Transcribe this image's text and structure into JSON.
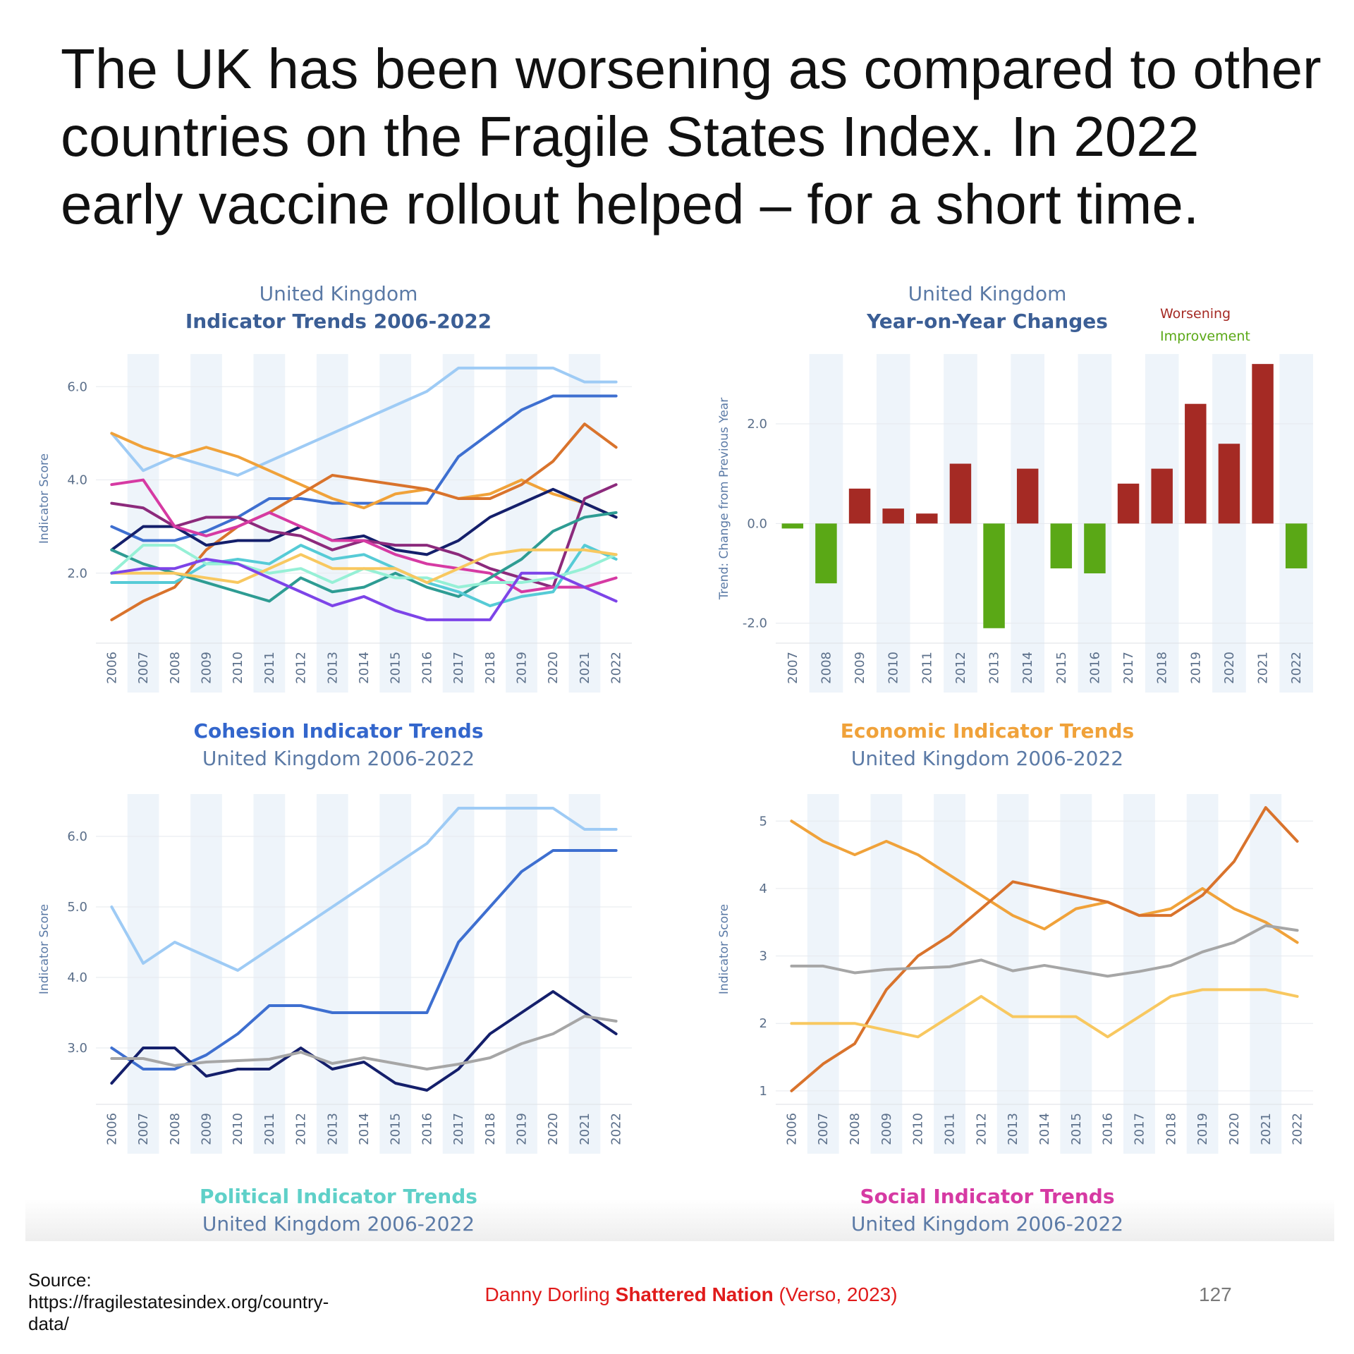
{
  "headline": "The UK has been worsening as compared to other countries on the Fragile States Index. In 2022 early vaccine rollout helped – for a short time.",
  "footer": {
    "source": "Source: https://fragilestatesindex.org/country-data/",
    "credit_author": "Danny Dorling ",
    "credit_book": "Shattered Nation",
    "credit_pub": " (Verso, 2023)",
    "page_number": "127"
  },
  "colors": {
    "worsening": "#a52a24",
    "improvement": "#5aa816",
    "band": "#eef4fa",
    "cohesion_title": "#3366cc",
    "economic_title": "#f0a23a",
    "political_title": "#5fd0c8",
    "social_title": "#d63aa3"
  },
  "chart_data": [
    {
      "id": "indicator-trends",
      "type": "line",
      "subtitle": "United Kingdom",
      "title": "Indicator Trends 2006-2022",
      "ylabel": "Indicator Score",
      "ylim": [
        0.5,
        6.7
      ],
      "yticks": [
        2.0,
        4.0,
        6.0
      ],
      "ytick_labels": [
        "2.0",
        "4.0",
        "6.0"
      ],
      "x": [
        "2006",
        "2007",
        "2008",
        "2009",
        "2010",
        "2011",
        "2012",
        "2013",
        "2014",
        "2015",
        "2016",
        "2017",
        "2018",
        "2019",
        "2020",
        "2021",
        "2022"
      ],
      "series": [
        {
          "color": "#9ecbf5",
          "values": [
            5.0,
            4.2,
            4.5,
            4.3,
            4.1,
            4.4,
            4.7,
            5.0,
            5.3,
            5.6,
            5.9,
            6.4,
            6.4,
            6.4,
            6.4,
            6.1,
            6.1
          ]
        },
        {
          "color": "#3e6fd0",
          "values": [
            3.0,
            2.7,
            2.7,
            2.9,
            3.2,
            3.6,
            3.6,
            3.5,
            3.5,
            3.5,
            3.5,
            4.5,
            5.0,
            5.5,
            5.8,
            5.8,
            5.8
          ]
        },
        {
          "color": "#f0a23a",
          "values": [
            5.0,
            4.7,
            4.5,
            4.7,
            4.5,
            4.2,
            3.9,
            3.6,
            3.4,
            3.7,
            3.8,
            3.6,
            3.7,
            4.0,
            3.7,
            3.5,
            3.2
          ]
        },
        {
          "color": "#d9732c",
          "values": [
            1.0,
            1.4,
            1.7,
            2.5,
            3.0,
            3.3,
            3.7,
            4.1,
            4.0,
            3.9,
            3.8,
            3.6,
            3.6,
            3.9,
            4.4,
            5.2,
            4.7
          ]
        },
        {
          "color": "#141f6b",
          "values": [
            2.5,
            3.0,
            3.0,
            2.6,
            2.7,
            2.7,
            3.0,
            2.7,
            2.8,
            2.5,
            2.4,
            2.7,
            3.2,
            3.5,
            3.8,
            3.5,
            3.2
          ]
        },
        {
          "color": "#8c2a7c",
          "values": [
            3.5,
            3.4,
            3.0,
            3.2,
            3.2,
            2.9,
            2.8,
            2.5,
            2.7,
            2.6,
            2.6,
            2.4,
            2.1,
            1.9,
            1.7,
            3.6,
            3.9
          ]
        },
        {
          "color": "#d63aa3",
          "values": [
            3.9,
            4.0,
            3.0,
            2.8,
            3.0,
            3.3,
            3.0,
            2.7,
            2.7,
            2.4,
            2.2,
            2.1,
            2.0,
            1.6,
            1.7,
            1.7,
            1.9
          ]
        },
        {
          "color": "#2e9c93",
          "values": [
            2.5,
            2.2,
            2.0,
            1.8,
            1.6,
            1.4,
            1.9,
            1.6,
            1.7,
            2.0,
            1.7,
            1.5,
            1.9,
            2.3,
            2.9,
            3.2,
            3.3
          ]
        },
        {
          "color": "#56cbd6",
          "values": [
            1.8,
            1.8,
            1.8,
            2.2,
            2.3,
            2.2,
            2.6,
            2.3,
            2.4,
            2.1,
            1.8,
            1.6,
            1.3,
            1.5,
            1.6,
            2.6,
            2.3
          ]
        },
        {
          "color": "#96f0d6",
          "values": [
            2.0,
            2.6,
            2.6,
            2.2,
            2.2,
            2.0,
            2.1,
            1.8,
            2.1,
            1.9,
            1.9,
            1.7,
            1.8,
            1.8,
            1.9,
            2.1,
            2.4
          ]
        },
        {
          "color": "#f8c860",
          "values": [
            2.0,
            2.0,
            2.0,
            1.9,
            1.8,
            2.1,
            2.4,
            2.1,
            2.1,
            2.1,
            1.8,
            2.1,
            2.4,
            2.5,
            2.5,
            2.5,
            2.4
          ]
        },
        {
          "color": "#7d44e8",
          "values": [
            2.0,
            2.1,
            2.1,
            2.3,
            2.2,
            1.9,
            1.6,
            1.3,
            1.5,
            1.2,
            1.0,
            1.0,
            1.0,
            2.0,
            2.0,
            1.7,
            1.4
          ]
        }
      ]
    },
    {
      "id": "year-on-year",
      "type": "bar",
      "subtitle": "United Kingdom",
      "title": "Year-on-Year Changes",
      "ylabel": "Trend: Change from Previous Year",
      "legend": [
        "Worsening",
        "Improvement"
      ],
      "ylim": [
        -2.4,
        3.4
      ],
      "yticks": [
        -2.0,
        0.0,
        2.0
      ],
      "ytick_labels": [
        "-2.0",
        "0.0",
        "2.0"
      ],
      "categories": [
        "2007",
        "2008",
        "2009",
        "2010",
        "2011",
        "2012",
        "2013",
        "2014",
        "2015",
        "2016",
        "2017",
        "2018",
        "2019",
        "2020",
        "2021",
        "2022"
      ],
      "values": [
        -0.1,
        -1.2,
        0.7,
        0.3,
        0.2,
        1.2,
        -2.1,
        1.1,
        -0.9,
        -1.0,
        0.8,
        1.1,
        2.4,
        1.6,
        3.2,
        -0.9
      ]
    },
    {
      "id": "cohesion",
      "type": "line",
      "title": "Cohesion Indicator Trends",
      "subtitle": "United Kingdom 2006-2022",
      "ylabel": "Indicator Score",
      "ylim": [
        2.2,
        6.6
      ],
      "yticks": [
        3.0,
        4.0,
        5.0,
        6.0
      ],
      "ytick_labels": [
        "3.0",
        "4.0",
        "5.0",
        "6.0"
      ],
      "x": [
        "2006",
        "2007",
        "2008",
        "2009",
        "2010",
        "2011",
        "2012",
        "2013",
        "2014",
        "2015",
        "2016",
        "2017",
        "2018",
        "2019",
        "2020",
        "2021",
        "2022"
      ],
      "series": [
        {
          "color": "#9ecbf5",
          "values": [
            5.0,
            4.2,
            4.5,
            4.3,
            4.1,
            4.4,
            4.7,
            5.0,
            5.3,
            5.6,
            5.9,
            6.4,
            6.4,
            6.4,
            6.4,
            6.1,
            6.1
          ]
        },
        {
          "color": "#3e6fd0",
          "values": [
            3.0,
            2.7,
            2.7,
            2.9,
            3.2,
            3.6,
            3.6,
            3.5,
            3.5,
            3.5,
            3.5,
            4.5,
            5.0,
            5.5,
            5.8,
            5.8,
            5.8
          ]
        },
        {
          "color": "#141f6b",
          "values": [
            2.5,
            3.0,
            3.0,
            2.6,
            2.7,
            2.7,
            3.0,
            2.7,
            2.8,
            2.5,
            2.4,
            2.7,
            3.2,
            3.5,
            3.8,
            3.5,
            3.2
          ]
        },
        {
          "color": "#a6a6a6",
          "values": [
            2.85,
            2.85,
            2.75,
            2.8,
            2.82,
            2.84,
            2.94,
            2.78,
            2.86,
            2.78,
            2.7,
            2.77,
            2.86,
            3.06,
            3.2,
            3.45,
            3.38
          ]
        }
      ]
    },
    {
      "id": "economic",
      "type": "line",
      "title": "Economic Indicator Trends",
      "subtitle": "United Kingdom 2006-2022",
      "ylabel": "Indicator Score",
      "ylim": [
        0.8,
        5.4
      ],
      "yticks": [
        1,
        2,
        3,
        4,
        5
      ],
      "ytick_labels": [
        "1",
        "2",
        "3",
        "4",
        "5"
      ],
      "x": [
        "2006",
        "2007",
        "2008",
        "2009",
        "2010",
        "2011",
        "2012",
        "2013",
        "2014",
        "2015",
        "2016",
        "2017",
        "2018",
        "2019",
        "2020",
        "2021",
        "2022"
      ],
      "series": [
        {
          "color": "#f0a23a",
          "values": [
            5.0,
            4.7,
            4.5,
            4.7,
            4.5,
            4.2,
            3.9,
            3.6,
            3.4,
            3.7,
            3.8,
            3.6,
            3.7,
            4.0,
            3.7,
            3.5,
            3.2
          ]
        },
        {
          "color": "#d9732c",
          "values": [
            1.0,
            1.4,
            1.7,
            2.5,
            3.0,
            3.3,
            3.7,
            4.1,
            4.0,
            3.9,
            3.8,
            3.6,
            3.6,
            3.9,
            4.4,
            5.2,
            4.7
          ]
        },
        {
          "color": "#a6a6a6",
          "values": [
            2.85,
            2.85,
            2.75,
            2.8,
            2.82,
            2.84,
            2.94,
            2.78,
            2.86,
            2.78,
            2.7,
            2.77,
            2.86,
            3.06,
            3.2,
            3.45,
            3.38
          ]
        },
        {
          "color": "#f8c860",
          "values": [
            2.0,
            2.0,
            2.0,
            1.9,
            1.8,
            2.1,
            2.4,
            2.1,
            2.1,
            2.1,
            1.8,
            2.1,
            2.4,
            2.5,
            2.5,
            2.5,
            2.4
          ]
        }
      ]
    }
  ],
  "bottom_titles": [
    {
      "title": "Political Indicator Trends",
      "subtitle": "United Kingdom 2006-2022"
    },
    {
      "title": "Social Indicator Trends",
      "subtitle": "United Kingdom 2006-2022"
    }
  ]
}
